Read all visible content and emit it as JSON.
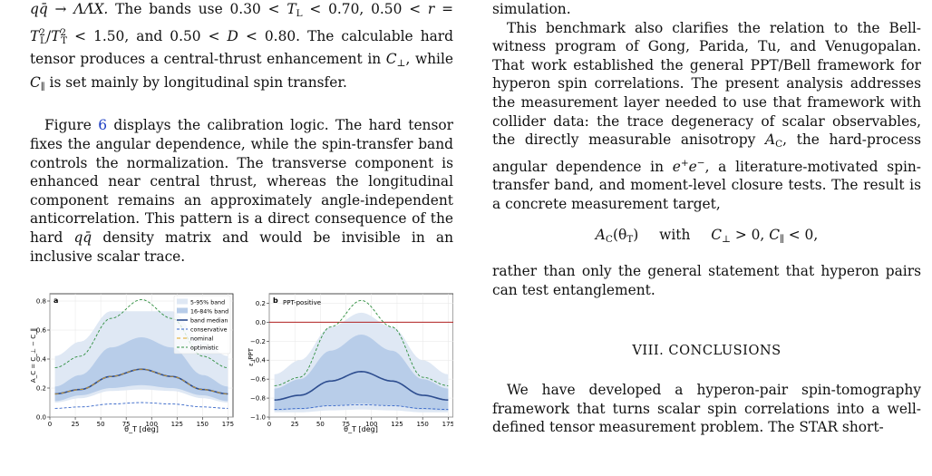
{
  "left_column": {
    "p1_line1_formula": "qq̄ → ΛΛ̄X.",
    "p1_line1_text": " The bands use 0.30 < ",
    "p1_line1_tl": "T",
    "p1_line1_tl_sub": "L",
    "p1_line1_text2": " < 0.70, 0.50 < ",
    "p1_line1_r": "r",
    "p1_line1_eq": " =",
    "p1_line2_ratio": "T",
    "p1_line2_ratio_sub": "L",
    "p1_line2_ratio_sup": "2",
    "p1_line2_slash": "/",
    "p1_line2_t": "T",
    "p1_line2_t_sub": "T",
    "p1_line2_t_sup": "2",
    "p1_line2_text": " < 1.50, and 0.50 < ",
    "p1_line2_d": "D",
    "p1_line2_text2": " < 0.80. The calculable hard tensor produces a central-thrust enhancement in ",
    "p1_cperp": "C",
    "p1_cperp_sub": "⊥",
    "p1_text3": ", while ",
    "p1_cpar": "C",
    "p1_cpar_sub": "∥",
    "p1_text4": " is set mainly by longitudinal spin transfer.",
    "p2_fig": "Figure ",
    "p2_ref": "6",
    "p2_text": " displays the calibration logic. The hard tensor fixes the angular dependence, while the spin-transfer band controls the normalization. The transverse component is enhanced near central thrust, whereas the longitudinal component remains an approximately angle-independent anticorrelation. This pattern is a direct consequence of the hard ",
    "p2_qq": "qq̄",
    "p2_text2": " density matrix and would be invisible in an inclusive scalar trace."
  },
  "right_column": {
    "frag_xx": "ΛΛ̄",
    "frag_text": "simulation.",
    "p1": "This benchmark also clarifies the relation to the Bell-witness program of Gong, Parida, Tu, and Venugopalan. That work established the general PPT/Bell framework for hyperon spin correlations. The present analysis addresses the measurement layer needed to use that framework with collider data: the trace degeneracy of scalar observables, the directly measurable anisotropy ",
    "p1_ac": "A",
    "p1_ac_sub": "C",
    "p1_text2": ", the hard-process angular dependence in ",
    "p1_ee": "e",
    "p1_ee_sup1": "+",
    "p1_ee2": "e",
    "p1_ee_sup2": "−",
    "p1_text3": ", a literature-motivated spin-transfer band, and moment-level closure tests. The result is a concrete measurement target,",
    "eq_a": "A",
    "eq_a_sub": "C",
    "eq_arg": "(θ",
    "eq_arg_sub": "T",
    "eq_close": ")",
    "eq_with": "with",
    "eq_c1": "C",
    "eq_c1_sub": "⊥",
    "eq_c1_rel": " > 0, ",
    "eq_c2": "C",
    "eq_c2_sub": "∥",
    "eq_c2_rel": " < 0,",
    "p2": "rather than only the general statement that hyperon pairs can test entanglement.",
    "heading": "VIII.   CONCLUSIONS",
    "p3": "We have developed a hyperon-pair spin-tomography framework that turns scalar spin correlations into a well-defined tensor measurement problem. The STAR short-"
  },
  "figure": {
    "panel_a": {
      "label": "a",
      "ylabel": "A_C = C_⊥ − C_∥",
      "xlabel": "θ_T [deg]",
      "xticks": [
        "0",
        "25",
        "50",
        "75",
        "100",
        "125",
        "150",
        "175"
      ],
      "yticks": [
        "0.0",
        "0.2",
        "0.4",
        "0.6",
        "0.8"
      ],
      "legend": [
        "5-95% band",
        "16-84% band",
        "band median",
        "conservative",
        "nominal",
        "optimistic"
      ]
    },
    "panel_b": {
      "label": "b",
      "annotation": "PPT-positive",
      "ylabel": "ε_PPT",
      "xlabel": "θ_T [deg]",
      "xticks": [
        "0",
        "25",
        "50",
        "75",
        "100",
        "125",
        "150",
        "175"
      ],
      "yticks": [
        "0.2",
        "0.0",
        "−0.2",
        "−0.4",
        "−0.6",
        "−0.8",
        "−1.0"
      ]
    },
    "colors": {
      "band_outer": "#dfe8f4",
      "band_inner": "#b8cde9",
      "median": "#2d4d8f",
      "optimistic": "#2f8f3f",
      "conservative": "#3565c8",
      "nominal": "#e3a21a",
      "ppt_line": "#b02020"
    }
  },
  "chart_data": [
    {
      "type": "area",
      "panel": "a",
      "x_range": [
        0,
        180
      ],
      "ylim": [
        0,
        0.85
      ],
      "xlabel": "θ_T [deg]",
      "ylabel": "A_C = C_⊥ − C_∥",
      "x": [
        5,
        30,
        60,
        90,
        120,
        150,
        175
      ],
      "series": [
        {
          "name": "5-95% band",
          "low": [
            0.1,
            0.13,
            0.18,
            0.19,
            0.18,
            0.13,
            0.1
          ],
          "high": [
            0.42,
            0.52,
            0.73,
            0.73,
            0.73,
            0.52,
            0.42
          ]
        },
        {
          "name": "16-84% band",
          "low": [
            0.11,
            0.15,
            0.2,
            0.22,
            0.2,
            0.15,
            0.11
          ],
          "high": [
            0.21,
            0.29,
            0.48,
            0.55,
            0.48,
            0.29,
            0.21
          ]
        },
        {
          "name": "band median",
          "values": [
            0.16,
            0.19,
            0.28,
            0.33,
            0.28,
            0.19,
            0.16
          ]
        },
        {
          "name": "conservative",
          "values": [
            0.06,
            0.07,
            0.09,
            0.1,
            0.09,
            0.07,
            0.06
          ]
        },
        {
          "name": "nominal",
          "values": [
            0.16,
            0.19,
            0.28,
            0.33,
            0.28,
            0.19,
            0.16
          ]
        },
        {
          "name": "optimistic",
          "values": [
            0.34,
            0.42,
            0.68,
            0.81,
            0.68,
            0.42,
            0.34
          ]
        }
      ],
      "legend_position": "top-right",
      "grid": true
    },
    {
      "type": "area",
      "panel": "b",
      "x_range": [
        0,
        180
      ],
      "ylim": [
        -1.0,
        0.3
      ],
      "xlabel": "θ_T [deg]",
      "ylabel": "ε_PPT",
      "x": [
        5,
        30,
        60,
        90,
        120,
        150,
        175
      ],
      "series": [
        {
          "name": "5-95% band",
          "low": [
            -0.95,
            -0.95,
            -0.93,
            -0.92,
            -0.93,
            -0.95,
            -0.95
          ],
          "high": [
            -0.55,
            -0.4,
            -0.05,
            0.1,
            -0.05,
            -0.4,
            -0.55
          ]
        },
        {
          "name": "16-84% band",
          "low": [
            -0.93,
            -0.92,
            -0.88,
            -0.86,
            -0.88,
            -0.92,
            -0.93
          ],
          "high": [
            -0.7,
            -0.6,
            -0.3,
            -0.13,
            -0.3,
            -0.6,
            -0.7
          ]
        },
        {
          "name": "band median",
          "values": [
            -0.82,
            -0.77,
            -0.62,
            -0.52,
            -0.62,
            -0.77,
            -0.82
          ]
        },
        {
          "name": "conservative",
          "values": [
            -0.92,
            -0.91,
            -0.88,
            -0.87,
            -0.88,
            -0.91,
            -0.92
          ]
        },
        {
          "name": "optimistic",
          "values": [
            -0.67,
            -0.58,
            -0.05,
            0.23,
            -0.05,
            -0.58,
            -0.67
          ]
        }
      ],
      "reference_line": 0.0,
      "grid": true
    }
  ]
}
